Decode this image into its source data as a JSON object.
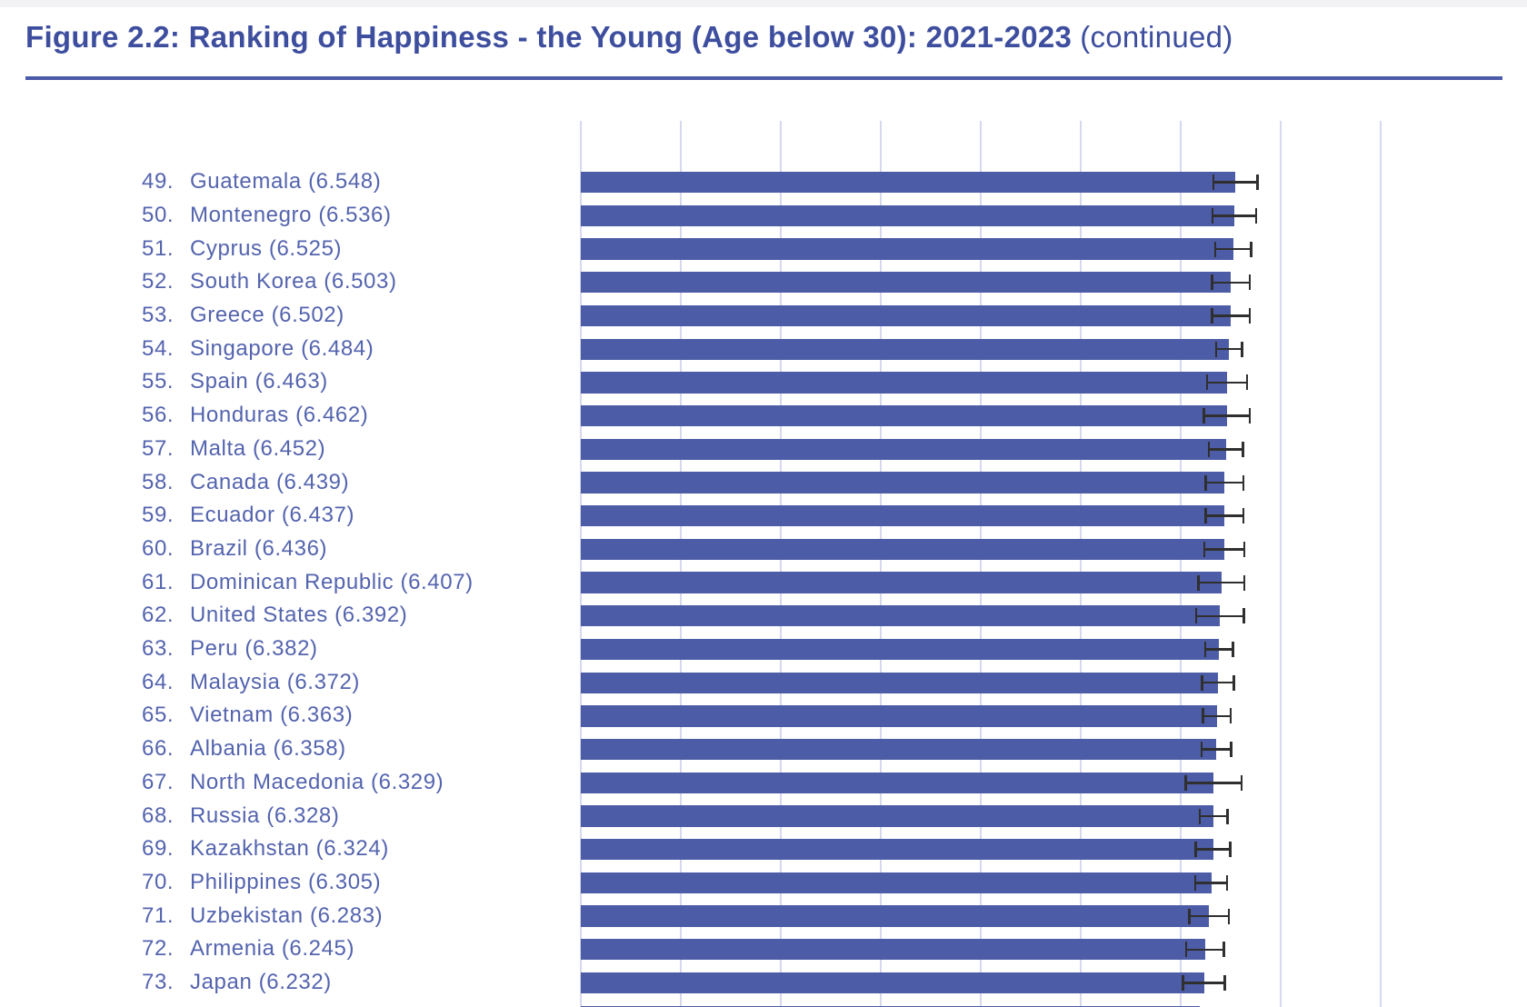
{
  "header": {
    "title_bold": "Figure 2.2: Ranking of Happiness - the Young (Age below 30): 2021-2023",
    "title_continued": "(continued)"
  },
  "colors": {
    "title_text": "#3e4e9e",
    "title_rule": "#4a5aa8",
    "bar_fill": "#4d5ca6",
    "gridline": "#d6d8ee",
    "label_text": "#5464ae",
    "error_bar": "#2f2f2f",
    "top_strip": "#f2f2f5"
  },
  "chart_data": {
    "type": "bar",
    "orientation": "horizontal",
    "title": "Figure 2.2: Ranking of Happiness - the Young (Age below 30): 2021-2023 (continued)",
    "xlabel": "",
    "ylabel": "",
    "xlim": [
      0,
      8
    ],
    "gridline_values": [
      0,
      1,
      2,
      3,
      4,
      5,
      6,
      7,
      8
    ],
    "axis_tick_labels_visible": false,
    "error_bars": true,
    "label_format": "rank. country (score)",
    "rows": [
      {
        "rank": 49,
        "country": "Guatemala",
        "score": 6.548,
        "ci": 0.23
      },
      {
        "rank": 50,
        "country": "Montenegro",
        "score": 6.536,
        "ci": 0.23
      },
      {
        "rank": 51,
        "country": "Cyprus",
        "score": 6.525,
        "ci": 0.19
      },
      {
        "rank": 52,
        "country": "South Korea",
        "score": 6.503,
        "ci": 0.2
      },
      {
        "rank": 53,
        "country": "Greece",
        "score": 6.502,
        "ci": 0.2
      },
      {
        "rank": 54,
        "country": "Singapore",
        "score": 6.484,
        "ci": 0.14
      },
      {
        "rank": 55,
        "country": "Spain",
        "score": 6.463,
        "ci": 0.21
      },
      {
        "rank": 56,
        "country": "Honduras",
        "score": 6.462,
        "ci": 0.24
      },
      {
        "rank": 57,
        "country": "Malta",
        "score": 6.452,
        "ci": 0.18
      },
      {
        "rank": 58,
        "country": "Canada",
        "score": 6.439,
        "ci": 0.2
      },
      {
        "rank": 59,
        "country": "Ecuador",
        "score": 6.437,
        "ci": 0.2
      },
      {
        "rank": 60,
        "country": "Brazil",
        "score": 6.436,
        "ci": 0.21
      },
      {
        "rank": 61,
        "country": "Dominican Republic",
        "score": 6.407,
        "ci": 0.24
      },
      {
        "rank": 62,
        "country": "United States",
        "score": 6.392,
        "ci": 0.25
      },
      {
        "rank": 63,
        "country": "Peru",
        "score": 6.382,
        "ci": 0.15
      },
      {
        "rank": 64,
        "country": "Malaysia",
        "score": 6.372,
        "ci": 0.17
      },
      {
        "rank": 65,
        "country": "Vietnam",
        "score": 6.363,
        "ci": 0.15
      },
      {
        "rank": 66,
        "country": "Albania",
        "score": 6.358,
        "ci": 0.16
      },
      {
        "rank": 67,
        "country": "North Macedonia",
        "score": 6.329,
        "ci": 0.29
      },
      {
        "rank": 68,
        "country": "Russia",
        "score": 6.328,
        "ci": 0.15
      },
      {
        "rank": 69,
        "country": "Kazakhstan",
        "score": 6.324,
        "ci": 0.185
      },
      {
        "rank": 70,
        "country": "Philippines",
        "score": 6.305,
        "ci": 0.17
      },
      {
        "rank": 71,
        "country": "Uzbekistan",
        "score": 6.283,
        "ci": 0.21
      },
      {
        "rank": 72,
        "country": "Armenia",
        "score": 6.245,
        "ci": 0.2
      },
      {
        "rank": 73,
        "country": "Japan",
        "score": 6.232,
        "ci": 0.22
      }
    ],
    "partial_next_bar": {
      "visible": true,
      "approx_score": 6.19
    }
  }
}
